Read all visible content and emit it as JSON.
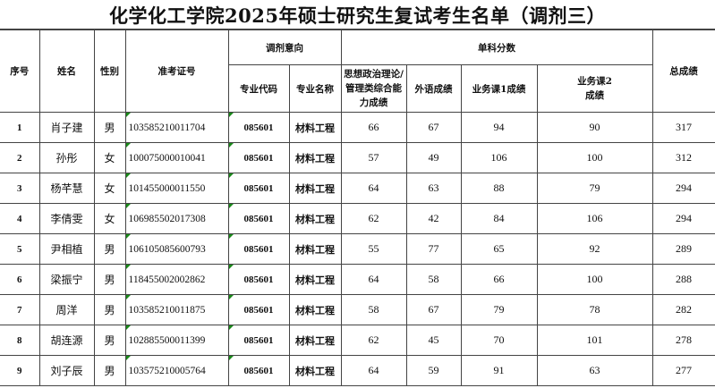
{
  "title": "化学化工学院2025年硕士研究生复试考生名单（调剂三）",
  "headers": {
    "seq": "序号",
    "name": "姓名",
    "gender": "性别",
    "exam_id": "准考证号",
    "intent_group": "调剂意向",
    "major_code": "专业代码",
    "major_name": "专业名称",
    "scores_group": "单科分数",
    "politics": "思想政治理论/管理类综合能力成绩",
    "foreign": "外语成绩",
    "course1": "业务课1成绩",
    "course2": "业务课2成绩",
    "total": "总成绩"
  },
  "flag_color": "#1a8a1a",
  "rows": [
    {
      "seq": "1",
      "name": "肖子建",
      "gender": "男",
      "exam_id": "103585210011704",
      "code": "085601",
      "major": "材料工程",
      "politics": "66",
      "foreign": "67",
      "c1": "94",
      "c2": "90",
      "total": "317"
    },
    {
      "seq": "2",
      "name": "孙彤",
      "gender": "女",
      "exam_id": "100075000010041",
      "code": "085601",
      "major": "材料工程",
      "politics": "57",
      "foreign": "49",
      "c1": "106",
      "c2": "100",
      "total": "312"
    },
    {
      "seq": "3",
      "name": "杨芊慧",
      "gender": "女",
      "exam_id": "101455000011550",
      "code": "085601",
      "major": "材料工程",
      "politics": "64",
      "foreign": "63",
      "c1": "88",
      "c2": "79",
      "total": "294"
    },
    {
      "seq": "4",
      "name": "李倩雯",
      "gender": "女",
      "exam_id": "106985502017308",
      "code": "085601",
      "major": "材料工程",
      "politics": "62",
      "foreign": "42",
      "c1": "84",
      "c2": "106",
      "total": "294"
    },
    {
      "seq": "5",
      "name": "尹相植",
      "gender": "男",
      "exam_id": "106105085600793",
      "code": "085601",
      "major": "材料工程",
      "politics": "55",
      "foreign": "77",
      "c1": "65",
      "c2": "92",
      "total": "289"
    },
    {
      "seq": "6",
      "name": "梁振宁",
      "gender": "男",
      "exam_id": "118455002002862",
      "code": "085601",
      "major": "材料工程",
      "politics": "64",
      "foreign": "58",
      "c1": "66",
      "c2": "100",
      "total": "288"
    },
    {
      "seq": "7",
      "name": "周洋",
      "gender": "男",
      "exam_id": "103585210011875",
      "code": "085601",
      "major": "材料工程",
      "politics": "58",
      "foreign": "67",
      "c1": "79",
      "c2": "78",
      "total": "282"
    },
    {
      "seq": "8",
      "name": "胡连源",
      "gender": "男",
      "exam_id": "102885500011399",
      "code": "085601",
      "major": "材料工程",
      "politics": "62",
      "foreign": "45",
      "c1": "70",
      "c2": "101",
      "total": "278"
    },
    {
      "seq": "9",
      "name": "刘子辰",
      "gender": "男",
      "exam_id": "103575210005764",
      "code": "085601",
      "major": "材料工程",
      "politics": "64",
      "foreign": "59",
      "c1": "91",
      "c2": "63",
      "total": "277"
    }
  ]
}
